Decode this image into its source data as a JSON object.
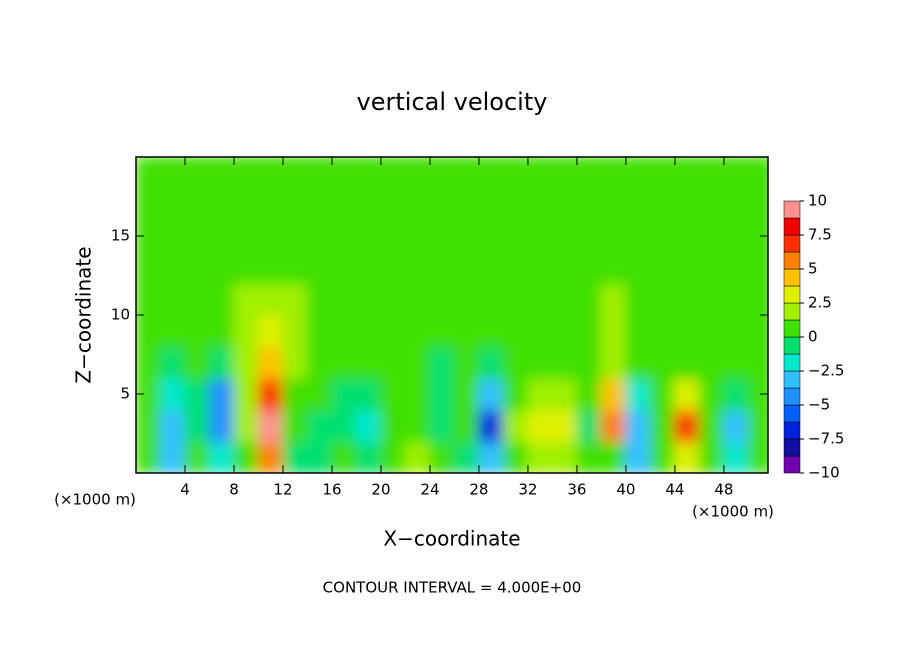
{
  "chart_data": {
    "type": "heatmap",
    "title": "vertical velocity",
    "x_label": "X−coordinate",
    "y_label": "Z−coordinate",
    "x_unit": "(×1000 m)",
    "footer": "CONTOUR INTERVAL = 4.000E+00",
    "xlim": [
      0,
      51.6
    ],
    "xticks": [
      4,
      8,
      12,
      16,
      20,
      24,
      28,
      32,
      36,
      40,
      44,
      48
    ],
    "ylim": [
      0,
      20
    ],
    "yticks": [
      5,
      10,
      15
    ],
    "x": [
      1,
      3,
      5,
      7,
      9,
      11,
      13,
      15,
      17,
      19,
      21,
      23,
      25,
      27,
      29,
      31,
      33,
      35,
      37,
      39,
      41,
      43,
      45,
      47,
      49,
      51
    ],
    "y": [
      1,
      3,
      5,
      7,
      9,
      11,
      13,
      15,
      17,
      19
    ],
    "values": [
      [
        0,
        -3,
        0,
        -2,
        1,
        5,
        -1,
        -1,
        0,
        -1,
        1,
        2,
        0,
        -1,
        -3,
        1,
        2,
        2,
        0,
        1,
        -3,
        1,
        3,
        1,
        -2,
        0
      ],
      [
        0,
        -3,
        -1,
        -5,
        2,
        10,
        0,
        -1,
        -1,
        -2,
        0,
        1,
        -1,
        0,
        -7,
        2,
        3,
        3,
        -1,
        6,
        -3,
        1,
        7,
        1,
        -3,
        0
      ],
      [
        0,
        -2,
        -1,
        -4,
        2,
        7,
        1,
        0,
        -1,
        -1,
        0,
        0,
        -1,
        0,
        -3,
        1,
        2,
        2,
        0,
        4,
        -2,
        1,
        3,
        0,
        -1,
        0
      ],
      [
        0,
        -1,
        0,
        -1,
        2,
        4,
        2,
        1,
        0,
        0,
        0,
        0,
        -1,
        0,
        -1,
        0,
        1,
        1,
        0,
        2,
        0,
        1,
        1,
        0,
        0,
        0
      ],
      [
        0,
        0,
        1,
        1,
        2,
        3,
        2,
        1,
        1,
        0,
        0,
        0,
        0,
        0,
        0,
        0,
        0,
        0,
        1,
        2,
        1,
        1,
        0,
        0,
        0,
        0
      ],
      [
        0,
        0,
        1,
        1,
        2,
        2,
        2,
        1,
        1,
        0,
        0,
        0,
        0,
        0,
        0,
        0,
        0,
        0,
        1,
        2,
        1,
        0,
        0,
        0,
        0,
        0
      ],
      [
        0,
        0,
        0,
        1,
        1,
        1,
        1,
        1,
        1,
        0,
        0,
        0,
        0,
        0,
        0,
        0,
        0,
        0,
        0,
        1,
        1,
        0,
        0,
        0,
        0,
        0
      ],
      [
        0,
        0,
        0,
        0,
        1,
        1,
        1,
        1,
        0,
        0,
        0,
        0,
        0,
        0,
        0,
        0,
        0,
        0,
        0,
        0,
        0,
        0,
        0,
        0,
        0,
        0
      ],
      [
        0,
        0,
        0,
        0,
        0,
        1,
        1,
        0,
        0,
        0,
        0,
        0,
        0,
        0,
        0,
        0,
        0,
        0,
        0,
        0,
        0,
        0,
        0,
        0,
        0,
        0
      ],
      [
        0,
        0,
        0,
        0,
        0,
        0,
        0,
        0,
        0,
        0,
        0,
        0,
        0,
        0,
        0,
        0,
        0,
        0,
        0,
        0,
        0,
        0,
        0,
        0,
        0,
        0
      ]
    ],
    "colorbar": {
      "lim": [
        -10,
        10
      ],
      "ticks": [
        10,
        7.5,
        5,
        2.5,
        0,
        {
          "value": -2.5,
          "label": "−2.5"
        },
        {
          "value": -5,
          "label": "−5"
        },
        {
          "value": -7.5,
          "label": "−7.5"
        },
        {
          "value": -10,
          "label": "−10"
        }
      ],
      "colors": [
        "#7000b0",
        "#1010a0",
        "#0020e0",
        "#0060ff",
        "#2090ff",
        "#30c0ff",
        "#00e8d0",
        "#00e070",
        "#40e000",
        "#a0f000",
        "#e0f000",
        "#ffc000",
        "#ff8000",
        "#ff3000",
        "#f00000",
        "#ff9090"
      ]
    }
  }
}
